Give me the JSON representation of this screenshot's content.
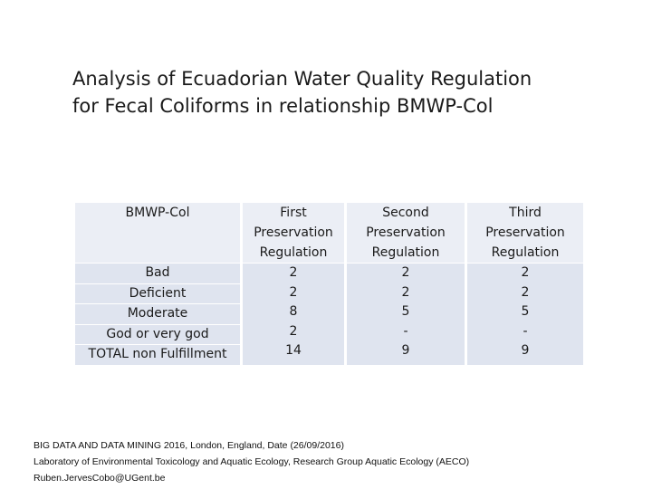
{
  "title": {
    "line1": "Analysis of Ecuadorian Water Quality Regulation",
    "line2": "for Fecal Coliforms in relationship BMWP-Col"
  },
  "table": {
    "headers": [
      [
        "BMWP-Col"
      ],
      [
        "First",
        "Preservation",
        "Regulation"
      ],
      [
        "Second",
        "Preservation",
        "Regulation"
      ],
      [
        "Third",
        "Preservation",
        "Regulation"
      ]
    ],
    "columns": [
      [
        "Bad",
        "Deficient",
        "Moderate",
        "God or very god",
        "TOTAL non Fulfillment"
      ],
      [
        "2",
        "2",
        "8",
        "2",
        "14"
      ],
      [
        "2",
        "2",
        "5",
        "-",
        "9"
      ],
      [
        "2",
        "2",
        "5",
        "-",
        "9"
      ]
    ]
  },
  "footer": {
    "line1": "BIG DATA AND DATA MINING 2016, London, England, Date (26/09/2016)",
    "line2": "Laboratory of Environmental Toxicology and Aquatic Ecology, Research Group Aquatic Ecology (AECO)",
    "line3": "Ruben.JervesCobo@UGent.be"
  }
}
